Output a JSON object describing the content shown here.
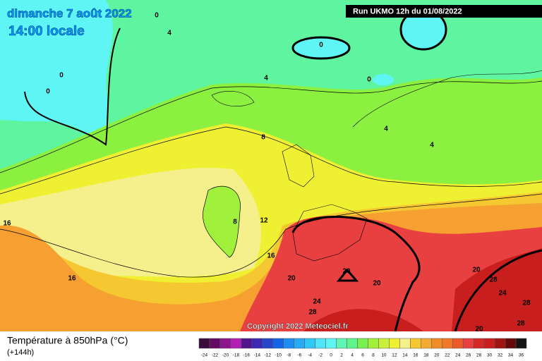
{
  "header": {
    "date": "dimanche 7 août 2022",
    "time": "14:00 locale",
    "run": "Run UKMO 12h du 01/08/2022",
    "copyright": "Copyright 2022 Meteociel.fr"
  },
  "footer": {
    "title": "Température à 850hPa (°C)",
    "lead": "(+144h)"
  },
  "legend": {
    "labels": [
      -24,
      -22,
      -20,
      -18,
      -16,
      -14,
      -12,
      -10,
      -8,
      -6,
      -4,
      -2,
      0,
      2,
      4,
      6,
      8,
      10,
      12,
      14,
      16,
      18,
      20,
      22,
      24,
      26,
      28,
      30,
      32,
      34,
      36
    ],
    "colors": [
      "#3c0a3c",
      "#640a64",
      "#8c148c",
      "#b41eb4",
      "#50148c",
      "#3c28b4",
      "#2846c8",
      "#1464e6",
      "#1e8cf0",
      "#28aaf5",
      "#32c8f5",
      "#50e6f5",
      "#60f5f5",
      "#5ff5b4",
      "#5ff58c",
      "#78f050",
      "#a0f03c",
      "#c8f03c",
      "#f0f032",
      "#f5f08c",
      "#f5c832",
      "#f5aa32",
      "#f08c28",
      "#f07828",
      "#eb5a28",
      "#e84040",
      "#d72828",
      "#c81e1e",
      "#a01414",
      "#640a0a",
      "#141414"
    ]
  },
  "contours": [
    0,
    4,
    0,
    0,
    0,
    0,
    4,
    8,
    4,
    4,
    8,
    12,
    16,
    16,
    16,
    20,
    20,
    20,
    20,
    28,
    24,
    24,
    28,
    28,
    28,
    20
  ]
}
